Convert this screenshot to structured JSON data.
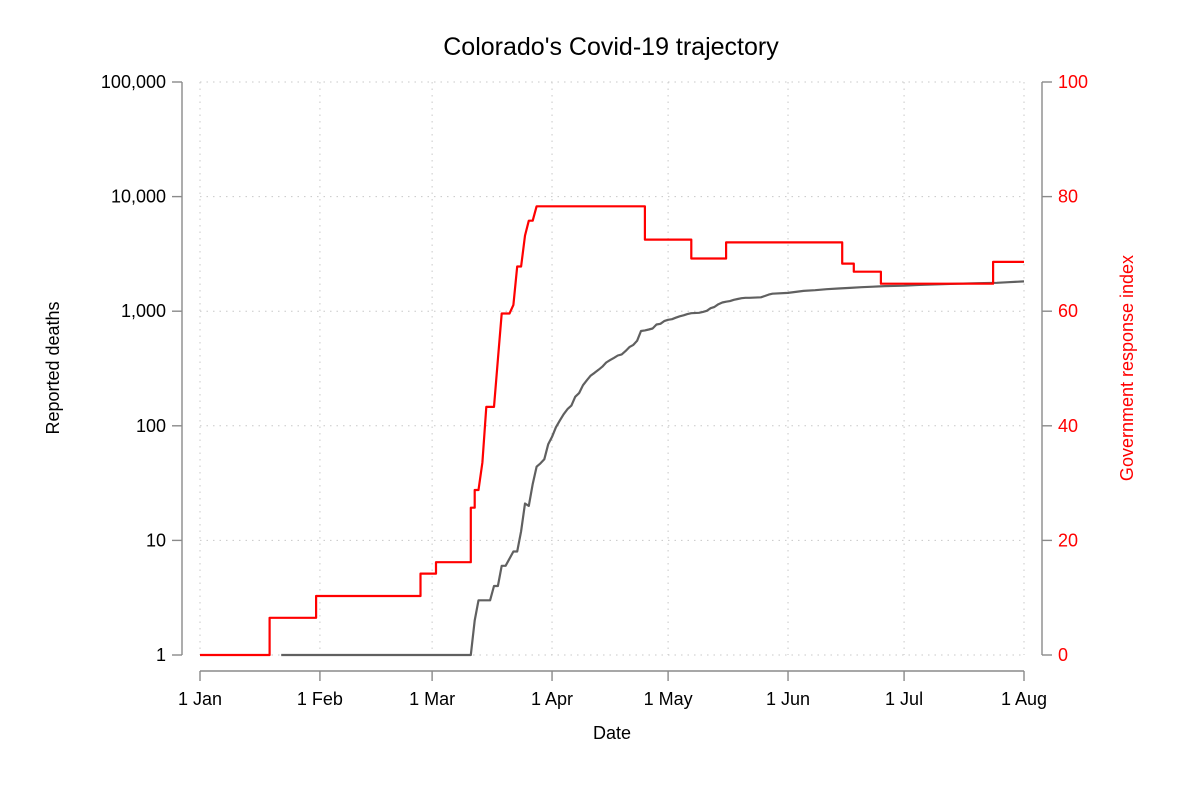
{
  "chart_data": {
    "type": "line",
    "title": "Colorado's Covid-19 trajectory",
    "xlabel": "Date",
    "ylabel_left": "Reported deaths",
    "ylabel_right": "Government response index",
    "x_ticks": [
      "2020-01-01",
      "2020-02-01",
      "2020-03-01",
      "2020-04-01",
      "2020-05-01",
      "2020-06-01",
      "2020-07-01",
      "2020-08-01"
    ],
    "x_tick_labels": [
      "1 Jan",
      "1 Feb",
      "1 Mar",
      "1 Apr",
      "1 May",
      "1 Jun",
      "1 Jul",
      "1 Aug"
    ],
    "y_left_ticks": [
      1,
      10,
      100,
      1000,
      10000,
      100000
    ],
    "y_left_tick_labels": [
      "1",
      "10",
      "100",
      "1,000",
      "10,000",
      "100,000"
    ],
    "y_left_scale": "log",
    "y_left_range": [
      1,
      100000
    ],
    "y_right_ticks": [
      0,
      20,
      40,
      60,
      80,
      100
    ],
    "y_right_tick_labels": [
      "0",
      "20",
      "40",
      "60",
      "80",
      "100"
    ],
    "y_right_range": [
      0,
      100
    ],
    "x_range": [
      "2020-01-01",
      "2020-08-01"
    ],
    "grid": true,
    "series": [
      {
        "axis": "left",
        "color": "#606060",
        "points": [
          [
            "2020-01-22",
            1
          ],
          [
            "2020-03-11",
            1
          ],
          [
            "2020-03-12",
            2
          ],
          [
            "2020-03-13",
            3
          ],
          [
            "2020-03-16",
            3
          ],
          [
            "2020-03-17",
            4
          ],
          [
            "2020-03-18",
            4
          ],
          [
            "2020-03-19",
            6
          ],
          [
            "2020-03-20",
            6
          ],
          [
            "2020-03-22",
            8
          ],
          [
            "2020-03-23",
            8
          ],
          [
            "2020-03-24",
            12
          ],
          [
            "2020-03-25",
            21
          ],
          [
            "2020-03-26",
            20
          ],
          [
            "2020-03-27",
            31
          ],
          [
            "2020-03-28",
            44
          ],
          [
            "2020-03-29",
            47
          ],
          [
            "2020-03-30",
            51
          ],
          [
            "2020-03-31",
            69
          ],
          [
            "2020-04-01",
            80
          ],
          [
            "2020-04-02",
            97
          ],
          [
            "2020-04-03",
            111
          ],
          [
            "2020-04-04",
            126
          ],
          [
            "2020-04-05",
            140
          ],
          [
            "2020-04-06",
            150
          ],
          [
            "2020-04-07",
            179
          ],
          [
            "2020-04-08",
            193
          ],
          [
            "2020-04-09",
            226
          ],
          [
            "2020-04-10",
            250
          ],
          [
            "2020-04-11",
            274
          ],
          [
            "2020-04-12",
            290
          ],
          [
            "2020-04-13",
            308
          ],
          [
            "2020-04-14",
            328
          ],
          [
            "2020-04-15",
            357
          ],
          [
            "2020-04-16",
            374
          ],
          [
            "2020-04-17",
            391
          ],
          [
            "2020-04-18",
            411
          ],
          [
            "2020-04-19",
            420
          ],
          [
            "2020-04-20",
            449
          ],
          [
            "2020-04-21",
            486
          ],
          [
            "2020-04-22",
            508
          ],
          [
            "2020-04-23",
            552
          ],
          [
            "2020-04-24",
            672
          ],
          [
            "2020-04-25",
            680
          ],
          [
            "2020-04-26",
            692
          ],
          [
            "2020-04-27",
            706
          ],
          [
            "2020-04-28",
            766
          ],
          [
            "2020-04-29",
            777
          ],
          [
            "2020-04-30",
            820
          ],
          [
            "2020-05-01",
            842
          ],
          [
            "2020-05-02",
            851
          ],
          [
            "2020-05-03",
            878
          ],
          [
            "2020-05-04",
            903
          ],
          [
            "2020-05-05",
            921
          ],
          [
            "2020-05-06",
            944
          ],
          [
            "2020-05-07",
            960
          ],
          [
            "2020-05-09",
            968
          ],
          [
            "2020-05-10",
            987
          ],
          [
            "2020-05-11",
            1009
          ],
          [
            "2020-05-12",
            1062
          ],
          [
            "2020-05-13",
            1091
          ],
          [
            "2020-05-14",
            1150
          ],
          [
            "2020-05-15",
            1192
          ],
          [
            "2020-05-16",
            1211
          ],
          [
            "2020-05-17",
            1224
          ],
          [
            "2020-05-18",
            1257
          ],
          [
            "2020-05-19",
            1279
          ],
          [
            "2020-05-20",
            1299
          ],
          [
            "2020-05-21",
            1309
          ],
          [
            "2020-05-22",
            1310
          ],
          [
            "2020-05-25",
            1321
          ],
          [
            "2020-05-26",
            1357
          ],
          [
            "2020-05-27",
            1397
          ],
          [
            "2020-05-28",
            1420
          ],
          [
            "2020-06-01",
            1443
          ],
          [
            "2020-06-03",
            1475
          ],
          [
            "2020-06-05",
            1503
          ],
          [
            "2020-06-08",
            1524
          ],
          [
            "2020-06-11",
            1555
          ],
          [
            "2020-06-14",
            1577
          ],
          [
            "2020-06-17",
            1598
          ],
          [
            "2020-06-20",
            1620
          ],
          [
            "2020-06-23",
            1635
          ],
          [
            "2020-06-26",
            1657
          ],
          [
            "2020-07-01",
            1668
          ],
          [
            "2020-07-05",
            1695
          ],
          [
            "2020-07-10",
            1718
          ],
          [
            "2020-07-15",
            1737
          ],
          [
            "2020-07-20",
            1755
          ],
          [
            "2020-07-25",
            1768
          ],
          [
            "2020-07-28",
            1790
          ],
          [
            "2020-08-01",
            1820
          ]
        ]
      },
      {
        "axis": "right",
        "color": "#ff0000",
        "points": [
          [
            "2020-01-01",
            0
          ],
          [
            "2020-01-19",
            0
          ],
          [
            "2020-01-19",
            6.5
          ],
          [
            "2020-01-31",
            6.5
          ],
          [
            "2020-01-31",
            10.3
          ],
          [
            "2020-02-27",
            10.3
          ],
          [
            "2020-02-27",
            14.2
          ],
          [
            "2020-03-02",
            14.2
          ],
          [
            "2020-03-02",
            16.2
          ],
          [
            "2020-03-11",
            16.2
          ],
          [
            "2020-03-11",
            25.7
          ],
          [
            "2020-03-12",
            25.7
          ],
          [
            "2020-03-12",
            28.8
          ],
          [
            "2020-03-13",
            28.8
          ],
          [
            "2020-03-14",
            33.6
          ],
          [
            "2020-03-15",
            43.3
          ],
          [
            "2020-03-17",
            43.3
          ],
          [
            "2020-03-18",
            51.6
          ],
          [
            "2020-03-19",
            59.6
          ],
          [
            "2020-03-21",
            59.6
          ],
          [
            "2020-03-22",
            61.1
          ],
          [
            "2020-03-23",
            67.8
          ],
          [
            "2020-03-24",
            67.8
          ],
          [
            "2020-03-25",
            73.2
          ],
          [
            "2020-03-26",
            75.8
          ],
          [
            "2020-03-27",
            75.8
          ],
          [
            "2020-03-28",
            78.3
          ],
          [
            "2020-04-25",
            78.3
          ],
          [
            "2020-04-25",
            72.5
          ],
          [
            "2020-05-07",
            72.5
          ],
          [
            "2020-05-07",
            69.2
          ],
          [
            "2020-05-16",
            69.2
          ],
          [
            "2020-05-16",
            72.0
          ],
          [
            "2020-06-15",
            72.0
          ],
          [
            "2020-06-15",
            68.3
          ],
          [
            "2020-06-18",
            68.3
          ],
          [
            "2020-06-18",
            66.9
          ],
          [
            "2020-06-25",
            66.9
          ],
          [
            "2020-06-25",
            64.8
          ],
          [
            "2020-07-24",
            64.8
          ],
          [
            "2020-07-24",
            68.6
          ],
          [
            "2020-08-01",
            68.6
          ]
        ]
      }
    ]
  }
}
